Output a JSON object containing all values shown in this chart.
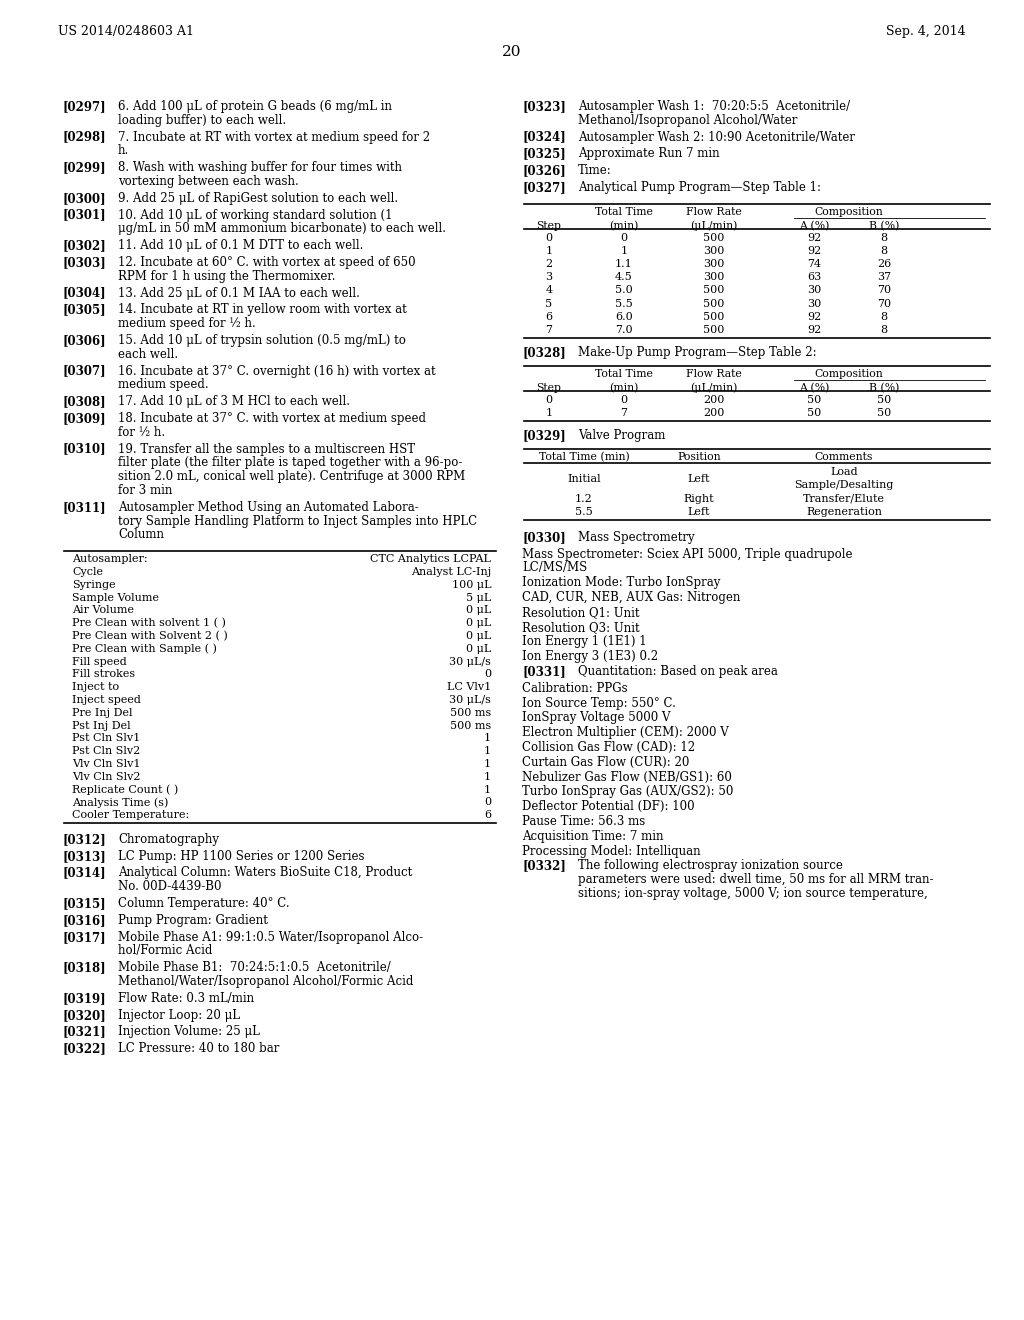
{
  "background_color": "#ffffff",
  "header_left": "US 2014/0248603 A1",
  "header_right": "Sep. 4, 2014",
  "page_number": "20",
  "left_paragraphs": [
    {
      "tag": "[0297]",
      "text": "6. Add 100 μL of protein G beads (6 mg/mL in\nloading buffer) to each well."
    },
    {
      "tag": "[0298]",
      "text": "7. Incubate at RT with vortex at medium speed for 2\nh."
    },
    {
      "tag": "[0299]",
      "text": "8. Wash with washing buffer for four times with\nvortexing between each wash."
    },
    {
      "tag": "[0300]",
      "text": "9. Add 25 μL of RapiGest solution to each well."
    },
    {
      "tag": "[0301]",
      "text": "10. Add 10 μL of working standard solution (1\nμg/mL in 50 mM ammonium bicarbonate) to each well."
    },
    {
      "tag": "[0302]",
      "text": "11. Add 10 μL of 0.1 M DTT to each well."
    },
    {
      "tag": "[0303]",
      "text": "12. Incubate at 60° C. with vortex at speed of 650\nRPM for 1 h using the Thermomixer."
    },
    {
      "tag": "[0304]",
      "text": "13. Add 25 μL of 0.1 M IAA to each well."
    },
    {
      "tag": "[0305]",
      "text": "14. Incubate at RT in yellow room with vortex at\nmedium speed for ½ h."
    },
    {
      "tag": "[0306]",
      "text": "15. Add 10 μL of trypsin solution (0.5 mg/mL) to\neach well."
    },
    {
      "tag": "[0307]",
      "text": "16. Incubate at 37° C. overnight (16 h) with vortex at\nmedium speed."
    },
    {
      "tag": "[0308]",
      "text": "17. Add 10 μL of 3 M HCl to each well."
    },
    {
      "tag": "[0309]",
      "text": "18. Incubate at 37° C. with vortex at medium speed\nfor ½ h."
    },
    {
      "tag": "[0310]",
      "text": "19. Transfer all the samples to a multiscreen HST\nfilter plate (the filter plate is taped together with a 96-po-\nsition 2.0 mL, conical well plate). Centrifuge at 3000 RPM\nfor 3 min"
    },
    {
      "tag": "[0311]",
      "text": "Autosampler Method Using an Automated Labora-\ntory Sample Handling Platform to Inject Samples into HPLC\nColumn"
    }
  ],
  "autosampler_table": {
    "rows": [
      [
        "Autosampler:",
        "CTC Analytics LCPAL"
      ],
      [
        "Cycle",
        "Analyst LC-Inj"
      ],
      [
        "Syringe",
        "100 μL"
      ],
      [
        "Sample Volume",
        "5 μL"
      ],
      [
        "Air Volume",
        "0 μL"
      ],
      [
        "Pre Clean with solvent 1 ( )",
        "0 μL"
      ],
      [
        "Pre Clean with Solvent 2 ( )",
        "0 μL"
      ],
      [
        "Pre Clean with Sample ( )",
        "0 μL"
      ],
      [
        "Fill speed",
        "30 μL/s"
      ],
      [
        "Fill strokes",
        "0"
      ],
      [
        "Inject to",
        "LC Vlv1"
      ],
      [
        "Inject speed",
        "30 μL/s"
      ],
      [
        "Pre Inj Del",
        "500 ms"
      ],
      [
        "Pst Inj Del",
        "500 ms"
      ],
      [
        "Pst Cln Slv1",
        "1"
      ],
      [
        "Pst Cln Slv2",
        "1"
      ],
      [
        "Vlv Cln Slv1",
        "1"
      ],
      [
        "Vlv Cln Slv2",
        "1"
      ],
      [
        "Replicate Count ( )",
        "1"
      ],
      [
        "Analysis Time (s)",
        "0"
      ],
      [
        "Cooler Temperature:",
        "6"
      ]
    ]
  },
  "left_bottom_paragraphs": [
    {
      "tag": "[0312]",
      "text": "Chromatography"
    },
    {
      "tag": "[0313]",
      "text": "LC Pump: HP 1100 Series or 1200 Series"
    },
    {
      "tag": "[0314]",
      "text": "Analytical Column: Waters BioSuite C18, Product\nNo. 00D-4439-B0"
    },
    {
      "tag": "[0315]",
      "text": "Column Temperature: 40° C."
    },
    {
      "tag": "[0316]",
      "text": "Pump Program: Gradient"
    },
    {
      "tag": "[0317]",
      "text": "Mobile Phase A1: 99:1:0.5 Water/Isopropanol Alco-\nhol/Formic Acid"
    },
    {
      "tag": "[0318]",
      "text": "Mobile Phase B1:  70:24:5:1:0.5  Acetonitrile/\nMethanol/Water/Isopropanol Alcohol/Formic Acid"
    },
    {
      "tag": "[0319]",
      "text": "Flow Rate: 0.3 mL/min"
    },
    {
      "tag": "[0320]",
      "text": "Injector Loop: 20 μL"
    },
    {
      "tag": "[0321]",
      "text": "Injection Volume: 25 μL"
    },
    {
      "tag": "[0322]",
      "text": "LC Pressure: 40 to 180 bar"
    }
  ],
  "right_top_paragraphs": [
    {
      "tag": "[0323]",
      "text": "Autosampler Wash 1:  70:20:5:5  Acetonitrile/\nMethanol/Isopropanol Alcohol/Water"
    },
    {
      "tag": "[0324]",
      "text": "Autosampler Wash 2: 10:90 Acetonitrile/Water"
    },
    {
      "tag": "[0325]",
      "text": "Approximate Run 7 min"
    },
    {
      "tag": "[0326]",
      "text": "Time:"
    },
    {
      "tag": "[0327]",
      "text": "Analytical Pump Program—Step Table 1:"
    }
  ],
  "step_table1_rows": [
    [
      0,
      0,
      500,
      92,
      8
    ],
    [
      1,
      1,
      300,
      92,
      8
    ],
    [
      2,
      1.1,
      300,
      74,
      26
    ],
    [
      3,
      4.5,
      300,
      63,
      37
    ],
    [
      4,
      5.0,
      500,
      30,
      70
    ],
    [
      5,
      5.5,
      500,
      30,
      70
    ],
    [
      6,
      6.0,
      500,
      92,
      8
    ],
    [
      7,
      7.0,
      500,
      92,
      8
    ]
  ],
  "step_table2_rows": [
    [
      0,
      0,
      200,
      50,
      50
    ],
    [
      1,
      7,
      200,
      50,
      50
    ]
  ],
  "right_mid_paragraph": "[0328]    Make-Up Pump Program—Step Table 2:",
  "right_valve_paragraph": "[0329]    Valve Program",
  "valve_table_rows": [
    [
      "Initial",
      "Left",
      "Load",
      "Sample/Desalting"
    ],
    [
      "1.2",
      "Right",
      "Transfer/Elute",
      ""
    ],
    [
      "5.5",
      "Left",
      "Regeneration",
      ""
    ]
  ],
  "right_bottom_lines": [
    {
      "tag": "[0330]",
      "indent": false,
      "text": "Mass Spectrometry"
    },
    {
      "tag": "",
      "indent": false,
      "text": "Mass Spectrometer: Sciex API 5000, Triple quadrupole\nLC/MS/MS"
    },
    {
      "tag": "",
      "indent": false,
      "text": "Ionization Mode: Turbo IonSpray"
    },
    {
      "tag": "",
      "indent": false,
      "text": "CAD, CUR, NEB, AUX Gas: Nitrogen"
    },
    {
      "tag": "",
      "indent": false,
      "text": "Resolution Q1: Unit"
    },
    {
      "tag": "",
      "indent": false,
      "text": "Resolution Q3: Unit"
    },
    {
      "tag": "",
      "indent": false,
      "text": "Ion Energy 1 (1E1) 1"
    },
    {
      "tag": "",
      "indent": false,
      "text": "Ion Energy 3 (1E3) 0.2"
    },
    {
      "tag": "[0331]",
      "indent": true,
      "text": "Quantitation: Based on peak area"
    },
    {
      "tag": "",
      "indent": false,
      "text": "Calibration: PPGs"
    },
    {
      "tag": "",
      "indent": false,
      "text": "Ion Source Temp: 550° C."
    },
    {
      "tag": "",
      "indent": false,
      "text": "IonSpray Voltage 5000 V"
    },
    {
      "tag": "",
      "indent": false,
      "text": "Electron Multiplier (CEM): 2000 V"
    },
    {
      "tag": "",
      "indent": false,
      "text": "Collision Gas Flow (CAD): 12"
    },
    {
      "tag": "",
      "indent": false,
      "text": "Curtain Gas Flow (CUR): 20"
    },
    {
      "tag": "",
      "indent": false,
      "text": "Nebulizer Gas Flow (NEB/GS1): 60"
    },
    {
      "tag": "",
      "indent": false,
      "text": "Turbo IonSpray Gas (AUX/GS2): 50"
    },
    {
      "tag": "",
      "indent": false,
      "text": "Deflector Potential (DF): 100"
    },
    {
      "tag": "",
      "indent": false,
      "text": "Pause Time: 56.3 ms"
    },
    {
      "tag": "",
      "indent": false,
      "text": "Acquisition Time: 7 min"
    },
    {
      "tag": "",
      "indent": false,
      "text": "Processing Model: Intelliquan"
    },
    {
      "tag": "[0332]",
      "indent": true,
      "text": "The following electrospray ionization source\nparameters were used: dwell time, 50 ms for all MRM tran-\nsitions; ion-spray voltage, 5000 V; ion source temperature,"
    }
  ]
}
